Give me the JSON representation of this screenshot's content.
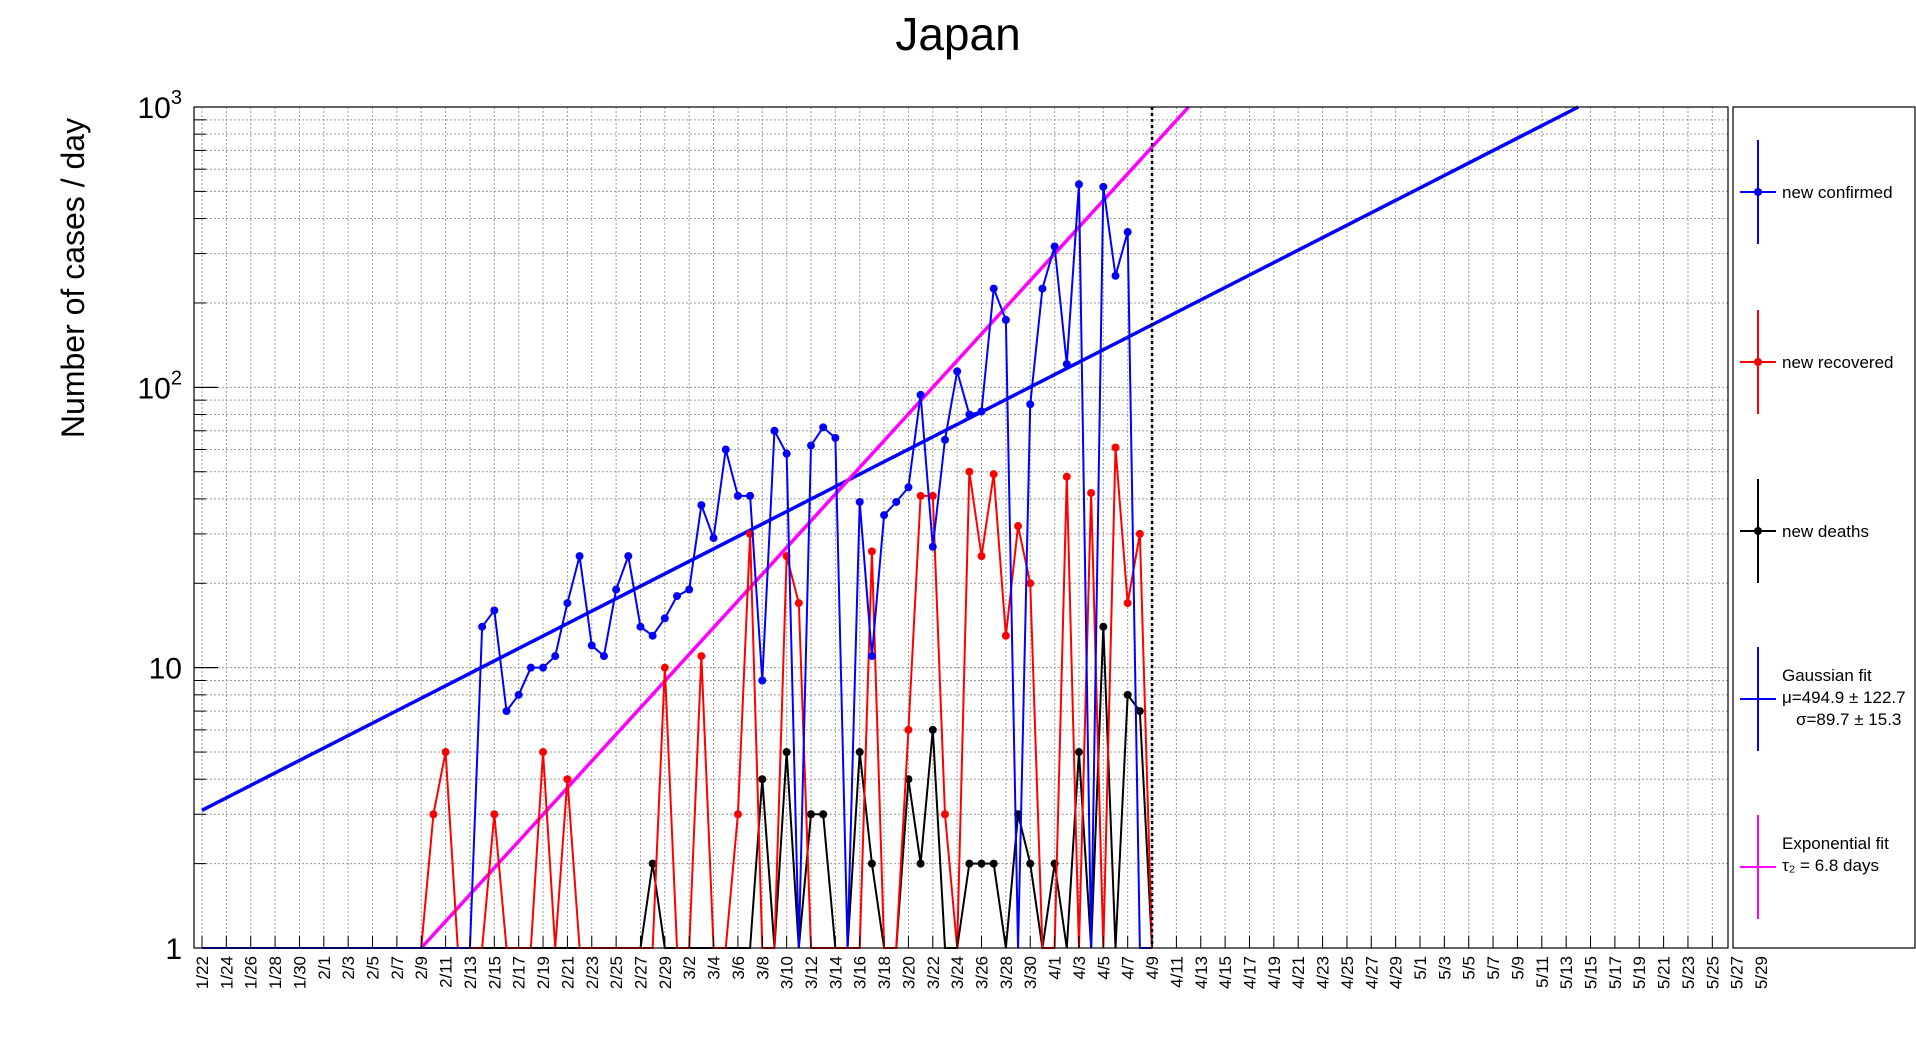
{
  "chart_data": {
    "type": "line",
    "title": "Japan",
    "ylabel": "Number of cases / day",
    "xlabel": "",
    "y_scale": "log",
    "ylim": [
      1,
      1000
    ],
    "y_ticks": [
      {
        "value": 1,
        "base": "1",
        "sup": ""
      },
      {
        "value": 10,
        "base": "10",
        "sup": ""
      },
      {
        "value": 100,
        "base": "10",
        "sup": "2"
      },
      {
        "value": 1000,
        "base": "10",
        "sup": "3"
      }
    ],
    "x_start": "1/22",
    "x_tick_labels": [
      "1/22",
      "1/24",
      "1/26",
      "1/28",
      "1/30",
      "2/1",
      "2/3",
      "2/5",
      "2/7",
      "2/9",
      "2/11",
      "2/13",
      "2/15",
      "2/17",
      "2/19",
      "2/21",
      "2/23",
      "2/25",
      "2/27",
      "2/29",
      "3/2",
      "3/4",
      "3/6",
      "3/8",
      "3/10",
      "3/12",
      "3/14",
      "3/16",
      "3/18",
      "3/20",
      "3/22",
      "3/24",
      "3/26",
      "3/28",
      "3/30",
      "4/1",
      "4/3",
      "4/5",
      "4/7",
      "4/9",
      "4/11",
      "4/13",
      "4/15",
      "4/17",
      "4/19",
      "4/21",
      "4/23",
      "4/25",
      "4/27",
      "4/29",
      "5/1",
      "5/3",
      "5/5",
      "5/7",
      "5/9",
      "5/11",
      "5/13",
      "5/15",
      "5/17",
      "5/19",
      "5/21",
      "5/23",
      "5/25",
      "5/27",
      "5/29"
    ],
    "vertical_marker": "4/9",
    "grid": true,
    "legend_position": "right",
    "series": [
      {
        "name": "new confirmed",
        "color": "#0000ff",
        "markers": true,
        "x": [
          "1/22",
          "1/23",
          "1/24",
          "1/25",
          "1/26",
          "1/27",
          "1/28",
          "1/29",
          "1/30",
          "1/31",
          "2/1",
          "2/2",
          "2/3",
          "2/4",
          "2/5",
          "2/6",
          "2/7",
          "2/8",
          "2/9",
          "2/10",
          "2/11",
          "2/12",
          "2/13",
          "2/14",
          "2/15",
          "2/16",
          "2/17",
          "2/18",
          "2/19",
          "2/20",
          "2/21",
          "2/22",
          "2/23",
          "2/24",
          "2/25",
          "2/26",
          "2/27",
          "2/28",
          "2/29",
          "3/1",
          "3/2",
          "3/3",
          "3/4",
          "3/5",
          "3/6",
          "3/7",
          "3/8",
          "3/9",
          "3/10",
          "3/11",
          "3/12",
          "3/13",
          "3/14",
          "3/15",
          "3/16",
          "3/17",
          "3/18",
          "3/19",
          "3/20",
          "3/21",
          "3/22",
          "3/23",
          "3/24",
          "3/25",
          "3/26",
          "3/27",
          "3/28",
          "3/29",
          "3/30",
          "3/31",
          "4/1",
          "4/2",
          "4/3",
          "4/4",
          "4/5",
          "4/6",
          "4/7",
          "4/8",
          "4/9"
        ],
        "y": [
          1,
          1,
          1,
          1,
          1,
          1,
          1,
          1,
          1,
          1,
          1,
          1,
          1,
          1,
          1,
          1,
          1,
          1,
          1,
          1,
          1,
          1,
          1,
          14,
          16,
          7,
          8,
          10,
          10,
          11,
          17,
          25,
          12,
          11,
          19,
          25,
          14,
          13,
          15,
          18,
          19,
          38,
          29,
          60,
          41,
          41,
          9,
          70,
          58,
          1,
          62,
          72,
          66,
          1,
          39,
          11,
          35,
          39,
          44,
          94,
          27,
          65,
          114,
          80,
          82,
          225,
          174,
          1,
          87,
          225,
          318,
          121,
          530,
          1,
          519,
          250,
          358,
          1,
          1
        ]
      },
      {
        "name": "new recovered",
        "color": "#ff0000",
        "markers": true,
        "x": [
          "1/22",
          "1/23",
          "1/24",
          "1/25",
          "1/26",
          "1/27",
          "1/28",
          "1/29",
          "1/30",
          "1/31",
          "2/1",
          "2/2",
          "2/3",
          "2/4",
          "2/5",
          "2/6",
          "2/7",
          "2/8",
          "2/9",
          "2/10",
          "2/11",
          "2/12",
          "2/13",
          "2/14",
          "2/15",
          "2/16",
          "2/17",
          "2/18",
          "2/19",
          "2/20",
          "2/21",
          "2/22",
          "2/23",
          "2/24",
          "2/25",
          "2/26",
          "2/27",
          "2/28",
          "2/29",
          "3/1",
          "3/2",
          "3/3",
          "3/4",
          "3/5",
          "3/6",
          "3/7",
          "3/8",
          "3/9",
          "3/10",
          "3/11",
          "3/12",
          "3/13",
          "3/14",
          "3/15",
          "3/16",
          "3/17",
          "3/18",
          "3/19",
          "3/20",
          "3/21",
          "3/22",
          "3/23",
          "3/24",
          "3/25",
          "3/26",
          "3/27",
          "3/28",
          "3/29",
          "3/30",
          "3/31",
          "4/1",
          "4/2",
          "4/3",
          "4/4",
          "4/5",
          "4/6",
          "4/7",
          "4/8",
          "4/9"
        ],
        "y": [
          1,
          1,
          1,
          1,
          1,
          1,
          1,
          1,
          1,
          1,
          1,
          1,
          1,
          1,
          1,
          1,
          1,
          1,
          1,
          3,
          5,
          1,
          1,
          1,
          3,
          1,
          1,
          1,
          5,
          1,
          4,
          1,
          1,
          1,
          1,
          1,
          1,
          1,
          10,
          1,
          1,
          11,
          1,
          1,
          3,
          30,
          1,
          1,
          25,
          17,
          1,
          1,
          1,
          1,
          1,
          26,
          1,
          1,
          6,
          41,
          41,
          3,
          1,
          50,
          25,
          49,
          13,
          32,
          20,
          1,
          1,
          48,
          1,
          42,
          1,
          61,
          17,
          30,
          1
        ]
      },
      {
        "name": "new deaths",
        "color": "#000000",
        "markers": true,
        "x": [
          "1/22",
          "1/23",
          "1/24",
          "1/25",
          "1/26",
          "1/27",
          "1/28",
          "1/29",
          "1/30",
          "1/31",
          "2/1",
          "2/2",
          "2/3",
          "2/4",
          "2/5",
          "2/6",
          "2/7",
          "2/8",
          "2/9",
          "2/10",
          "2/11",
          "2/12",
          "2/13",
          "2/14",
          "2/15",
          "2/16",
          "2/17",
          "2/18",
          "2/19",
          "2/20",
          "2/21",
          "2/22",
          "2/23",
          "2/24",
          "2/25",
          "2/26",
          "2/27",
          "2/28",
          "2/29",
          "3/1",
          "3/2",
          "3/3",
          "3/4",
          "3/5",
          "3/6",
          "3/7",
          "3/8",
          "3/9",
          "3/10",
          "3/11",
          "3/12",
          "3/13",
          "3/14",
          "3/15",
          "3/16",
          "3/17",
          "3/18",
          "3/19",
          "3/20",
          "3/21",
          "3/22",
          "3/23",
          "3/24",
          "3/25",
          "3/26",
          "3/27",
          "3/28",
          "3/29",
          "3/30",
          "3/31",
          "4/1",
          "4/2",
          "4/3",
          "4/4",
          "4/5",
          "4/6",
          "4/7",
          "4/8",
          "4/9"
        ],
        "y": [
          1,
          1,
          1,
          1,
          1,
          1,
          1,
          1,
          1,
          1,
          1,
          1,
          1,
          1,
          1,
          1,
          1,
          1,
          1,
          1,
          1,
          1,
          1,
          1,
          1,
          1,
          1,
          1,
          1,
          1,
          1,
          1,
          1,
          1,
          1,
          1,
          1,
          2,
          1,
          1,
          1,
          1,
          1,
          1,
          1,
          1,
          4,
          1,
          5,
          1,
          3,
          3,
          1,
          1,
          5,
          2,
          1,
          1,
          4,
          2,
          6,
          1,
          1,
          2,
          2,
          2,
          1,
          3,
          2,
          1,
          2,
          1,
          5,
          1,
          14,
          1,
          8,
          7,
          1
        ]
      },
      {
        "name": "Gaussian fit",
        "color": "#0000ff",
        "markers": false,
        "x": [
          "1/22",
          "5/14"
        ],
        "y": [
          3.1,
          1000
        ]
      },
      {
        "name": "Exponential fit",
        "color": "#ff00ff",
        "markers": false,
        "x": [
          "2/9",
          "4/12"
        ],
        "y": [
          1,
          1000
        ]
      }
    ],
    "legend": [
      {
        "line1": "new confirmed",
        "line2": "",
        "line3": "",
        "color": "#0000ff",
        "marker": true
      },
      {
        "line1": "new recovered",
        "line2": "",
        "line3": "",
        "color": "#ff0000",
        "marker": true
      },
      {
        "line1": "new deaths",
        "line2": "",
        "line3": "",
        "color": "#000000",
        "marker": true
      },
      {
        "line1": "Gaussian fit",
        "line2": "μ=494.9 ± 122.7",
        "line3": "σ=89.7 ± 15.3",
        "color": "#0000ff",
        "marker": false
      },
      {
        "line1": "Exponential fit",
        "line2": "τ₂ = 6.8 days",
        "line3": "",
        "color": "#ff00ff",
        "marker": false
      }
    ]
  }
}
